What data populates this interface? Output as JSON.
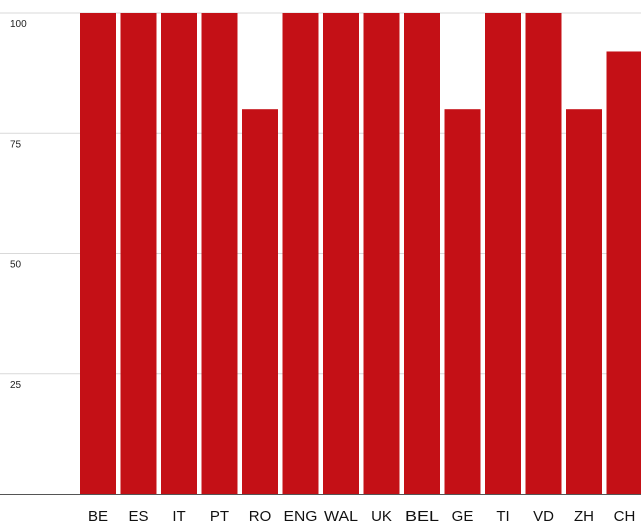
{
  "chart_data": {
    "type": "bar",
    "categories": [
      "BE",
      "ES",
      "IT",
      "PT",
      "RO",
      "ENG",
      "WAL",
      "UK",
      "BEL",
      "GE",
      "TI",
      "VD",
      "ZH",
      "CH"
    ],
    "values": [
      100,
      100,
      100,
      100,
      80,
      100,
      100,
      100,
      100,
      80,
      100,
      100,
      80,
      92
    ],
    "yticks": [
      "100",
      "75",
      "50",
      "25"
    ],
    "ytick_values": [
      100,
      75,
      50,
      25
    ],
    "ylim": [
      0,
      100
    ],
    "title": "",
    "xlabel": "",
    "ylabel": "",
    "grid": true,
    "colors": {
      "bar": "#c41016",
      "grid": "#d9d9d9",
      "axis": "#555555"
    }
  }
}
